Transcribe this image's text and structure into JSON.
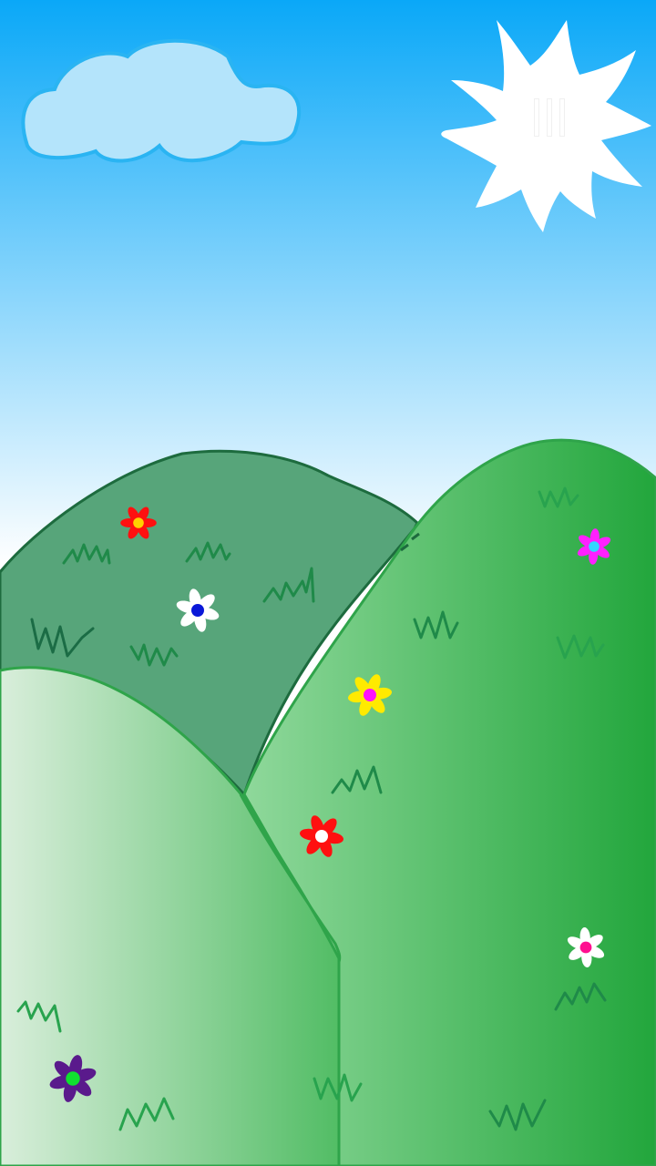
{
  "scene": {
    "colors": {
      "sky_top": "#0aa8f8",
      "sky_bottom": "#ffffff",
      "cloud_fill": "#b4e4fb",
      "cloud_stroke": "#2ab4f2",
      "sun": "#ffffff",
      "back_hill": "#57a57a",
      "back_hill_stroke": "#1d6b3e",
      "right_hill_light": "#8fd89b",
      "right_hill_dark": "#22a63c",
      "front_hill_light": "#d9eedb",
      "front_hill_dark": "#52bd65",
      "hill_stroke": "#2fa44a",
      "grass_dark": "#1b6c45",
      "grass_mid": "#1f8a49",
      "grass_light": "#28a34e"
    },
    "controls": {
      "pause_icon": "pause-icon"
    },
    "flowers": [
      {
        "petal": "#ff1010",
        "center": "#ffd000"
      },
      {
        "petal": "#ffffff",
        "center": "#0a18d8"
      },
      {
        "petal": "#ff20ff",
        "center": "#30d8ff"
      },
      {
        "petal": "#ffea00",
        "center": "#ff10ff"
      },
      {
        "petal": "#ff1010",
        "center": "#ffffff"
      },
      {
        "petal": "#ffffff",
        "center": "#ff1090"
      },
      {
        "petal": "#5a1a8c",
        "center": "#10e030"
      }
    ]
  }
}
